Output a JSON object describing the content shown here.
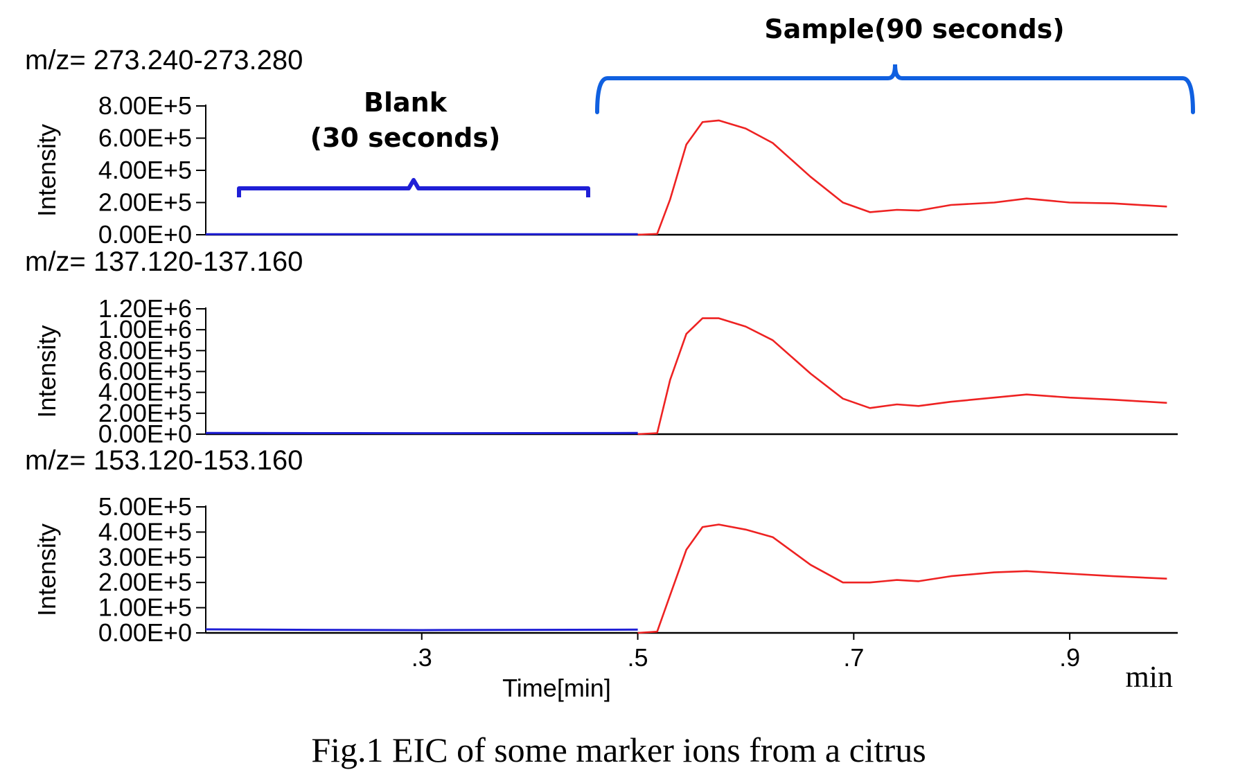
{
  "caption": "Fig.1 EIC of some marker ions from a citrus",
  "colors": {
    "blank": "#1f1fd6",
    "sample": "#ee2222",
    "bracket": "#1060e0",
    "axis": "#000000"
  },
  "annotations": {
    "blank_line1": "Blank",
    "blank_line2": "(30 seconds)",
    "sample": "Sample(90 seconds)",
    "unit": "min"
  },
  "chart_data": [
    {
      "type": "line",
      "title": "m/z= 273.240-273.280",
      "ylabel": "Intensity",
      "xlabel": "",
      "xlim": [
        0.1,
        1.0
      ],
      "ylim": [
        0,
        800000
      ],
      "yticks": [
        "0.00E+0",
        "2.00E+5",
        "4.00E+5",
        "6.00E+5",
        "8.00E+5"
      ],
      "ytick_values": [
        0,
        200000,
        400000,
        600000,
        800000
      ],
      "xticks": [],
      "xtick_values": [],
      "series": [
        {
          "role": "blank",
          "x": [
            0.1,
            0.2,
            0.3,
            0.4,
            0.5
          ],
          "y": [
            3000,
            3000,
            3000,
            3000,
            3000
          ]
        },
        {
          "role": "sample",
          "x": [
            0.5,
            0.518,
            0.53,
            0.545,
            0.56,
            0.575,
            0.6,
            0.625,
            0.66,
            0.69,
            0.715,
            0.74,
            0.76,
            0.79,
            0.83,
            0.86,
            0.9,
            0.94,
            0.99
          ],
          "y": [
            0,
            5000,
            220000,
            560000,
            700000,
            710000,
            660000,
            570000,
            360000,
            200000,
            140000,
            155000,
            150000,
            185000,
            200000,
            225000,
            200000,
            195000,
            175000
          ]
        }
      ]
    },
    {
      "type": "line",
      "title": "m/z= 137.120-137.160",
      "ylabel": "Intensity",
      "xlabel": "",
      "xlim": [
        0.1,
        1.0
      ],
      "ylim": [
        0,
        1200000
      ],
      "yticks": [
        "0.00E+0",
        "2.00E+5",
        "4.00E+5",
        "6.00E+5",
        "8.00E+5",
        "1.00E+6",
        "1.20E+6"
      ],
      "ytick_values": [
        0,
        200000,
        400000,
        600000,
        800000,
        1000000,
        1200000
      ],
      "xticks": [],
      "xtick_values": [],
      "series": [
        {
          "role": "blank",
          "x": [
            0.1,
            0.2,
            0.3,
            0.4,
            0.5
          ],
          "y": [
            12000,
            10000,
            9000,
            10000,
            11000
          ]
        },
        {
          "role": "sample",
          "x": [
            0.5,
            0.518,
            0.53,
            0.545,
            0.56,
            0.575,
            0.6,
            0.625,
            0.66,
            0.69,
            0.715,
            0.74,
            0.76,
            0.79,
            0.83,
            0.86,
            0.9,
            0.94,
            0.99
          ],
          "y": [
            0,
            10000,
            520000,
            960000,
            1110000,
            1110000,
            1030000,
            900000,
            580000,
            340000,
            250000,
            285000,
            270000,
            310000,
            350000,
            380000,
            350000,
            330000,
            300000
          ]
        }
      ]
    },
    {
      "type": "line",
      "title": "m/z= 153.120-153.160",
      "ylabel": "Intensity",
      "xlabel": "Time[min]",
      "xlim": [
        0.1,
        1.0
      ],
      "ylim": [
        0,
        500000
      ],
      "yticks": [
        "0.00E+0",
        "1.00E+5",
        "2.00E+5",
        "3.00E+5",
        "4.00E+5",
        "5.00E+5"
      ],
      "ytick_values": [
        0,
        100000,
        200000,
        300000,
        400000,
        500000
      ],
      "xticks": [
        ".3",
        ".5",
        ".7",
        ".9"
      ],
      "xtick_values": [
        0.3,
        0.5,
        0.7,
        0.9
      ],
      "series": [
        {
          "role": "blank",
          "x": [
            0.1,
            0.2,
            0.3,
            0.4,
            0.5
          ],
          "y": [
            14000,
            12000,
            11000,
            12000,
            13000
          ]
        },
        {
          "role": "sample",
          "x": [
            0.5,
            0.518,
            0.53,
            0.545,
            0.56,
            0.575,
            0.6,
            0.625,
            0.66,
            0.69,
            0.715,
            0.74,
            0.76,
            0.79,
            0.83,
            0.86,
            0.9,
            0.94,
            0.99
          ],
          "y": [
            0,
            5000,
            150000,
            330000,
            420000,
            430000,
            410000,
            380000,
            270000,
            200000,
            200000,
            210000,
            205000,
            225000,
            240000,
            245000,
            235000,
            225000,
            215000
          ]
        }
      ]
    }
  ]
}
